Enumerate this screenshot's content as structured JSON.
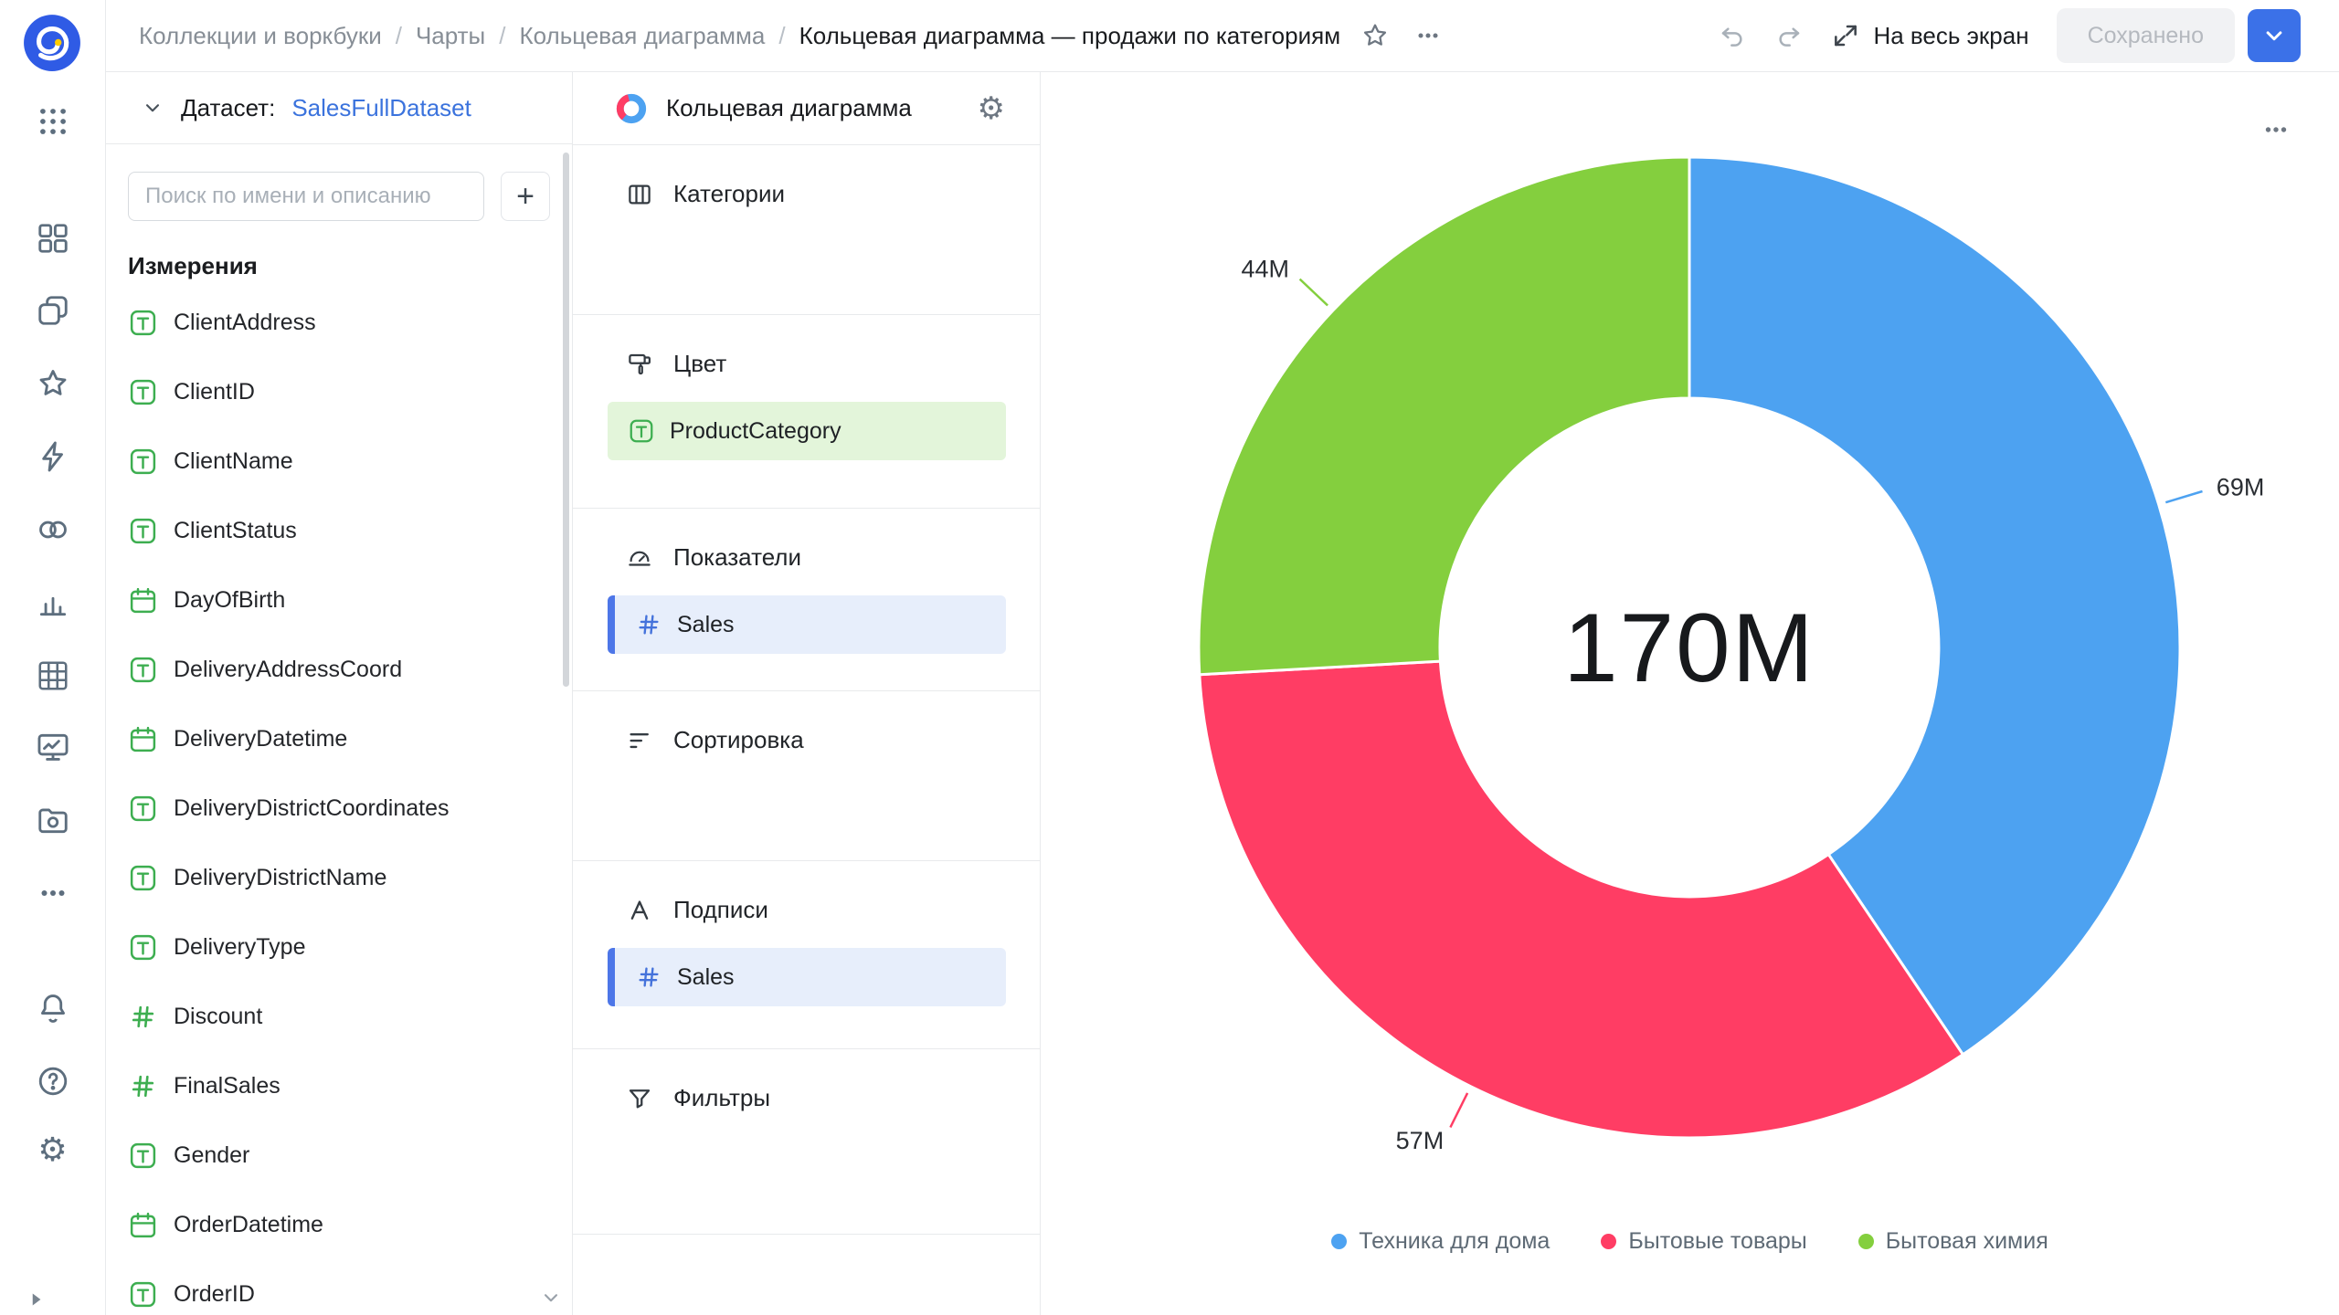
{
  "topbar": {
    "breadcrumb": [
      "Коллекции и воркбуки",
      "Чарты",
      "Кольцевая диаграмма"
    ],
    "title": "Кольцевая диаграмма — продажи по категориям",
    "fullscreen_label": "На весь экран",
    "save_status": "Сохранено"
  },
  "rail": {
    "icons": [
      "apps-grid",
      "workbooks",
      "collections",
      "favorites",
      "quick-start",
      "connections",
      "charts",
      "datasets",
      "dashboards",
      "files",
      "more",
      "notifications",
      "help",
      "settings",
      "collapse"
    ]
  },
  "dataset_panel": {
    "collapse_label": "Датасет:",
    "dataset_name": "SalesFullDataset",
    "search_placeholder": "Поиск по имени и описанию",
    "add_button": "+",
    "dimensions_title": "Измерения",
    "fields": [
      {
        "name": "ClientAddress",
        "type": "string"
      },
      {
        "name": "ClientID",
        "type": "string"
      },
      {
        "name": "ClientName",
        "type": "string"
      },
      {
        "name": "ClientStatus",
        "type": "string"
      },
      {
        "name": "DayOfBirth",
        "type": "date"
      },
      {
        "name": "DeliveryAddressCoord",
        "type": "string"
      },
      {
        "name": "DeliveryDatetime",
        "type": "date"
      },
      {
        "name": "DeliveryDistrictCoordinates",
        "type": "string"
      },
      {
        "name": "DeliveryDistrictName",
        "type": "string"
      },
      {
        "name": "DeliveryType",
        "type": "string"
      },
      {
        "name": "Discount",
        "type": "number"
      },
      {
        "name": "FinalSales",
        "type": "number"
      },
      {
        "name": "Gender",
        "type": "string"
      },
      {
        "name": "OrderDatetime",
        "type": "date"
      },
      {
        "name": "OrderID",
        "type": "string"
      }
    ]
  },
  "config_panel": {
    "chart_type": "Кольцевая диаграмма",
    "sections": {
      "categories": "Категории",
      "color": "Цвет",
      "color_field": "ProductCategory",
      "measures": "Показатели",
      "measure_field": "Sales",
      "sorting": "Сортировка",
      "labels": "Подписи",
      "labels_field": "Sales",
      "filters": "Фильтры"
    }
  },
  "chart_data": {
    "type": "pie",
    "variant": "donut",
    "center_total": "170M",
    "unit": "M",
    "legend_position": "bottom",
    "series": [
      {
        "name": "Техника для дома",
        "value": 69,
        "label": "69M",
        "color": "#4DA2F1"
      },
      {
        "name": "Бытовые товары",
        "value": 57,
        "label": "57M",
        "color": "#FF3D64"
      },
      {
        "name": "Бытовая химия",
        "value": 44,
        "label": "44M",
        "color": "#84CF3E"
      }
    ]
  }
}
